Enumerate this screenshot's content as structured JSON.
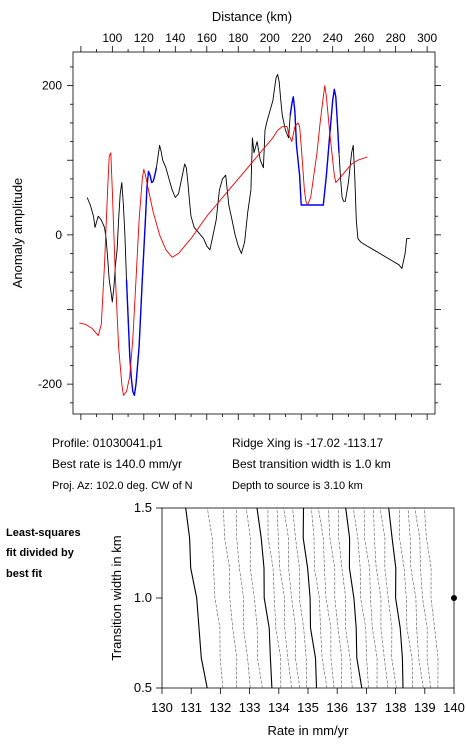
{
  "chart_data": [
    {
      "type": "line",
      "xlabel": "Distance (km)",
      "ylabel": "Anomaly amplitude",
      "xlim": [
        75,
        305
      ],
      "ylim": [
        -240,
        245
      ],
      "x_ticks": [
        100,
        120,
        140,
        160,
        180,
        200,
        220,
        240,
        260,
        280,
        300
      ],
      "y_ticks": [
        -200,
        0,
        200
      ],
      "grid": false,
      "series": [
        {
          "color": "#000000",
          "points": [
            [
              84,
              50
            ],
            [
              86,
              40
            ],
            [
              88,
              25
            ],
            [
              89,
              10
            ],
            [
              91,
              25
            ],
            [
              93,
              20
            ],
            [
              95,
              10
            ],
            [
              96,
              -5
            ],
            [
              97,
              -30
            ],
            [
              98,
              -60
            ],
            [
              99,
              -75
            ],
            [
              100,
              -90
            ],
            [
              101,
              -70
            ],
            [
              102,
              -40
            ],
            [
              103,
              -20
            ],
            [
              104,
              20
            ],
            [
              105,
              55
            ],
            [
              106,
              70
            ],
            [
              107,
              40
            ],
            [
              108,
              0
            ],
            [
              109,
              -60
            ],
            [
              110,
              -110
            ],
            [
              111,
              -160
            ],
            [
              112,
              -190
            ],
            [
              113,
              -210
            ],
            [
              114,
              -215
            ],
            [
              115,
              -200
            ],
            [
              117,
              -150
            ],
            [
              119,
              -60
            ],
            [
              121,
              20
            ],
            [
              122,
              65
            ],
            [
              123,
              85
            ],
            [
              124,
              80
            ],
            [
              125,
              70
            ],
            [
              126,
              72
            ],
            [
              127,
              80
            ],
            [
              128,
              90
            ],
            [
              129,
              105
            ],
            [
              130,
              120
            ],
            [
              131,
              112
            ],
            [
              132,
              100
            ],
            [
              134,
              90
            ],
            [
              136,
              75
            ],
            [
              138,
              60
            ],
            [
              140,
              50
            ],
            [
              142,
              55
            ],
            [
              144,
              75
            ],
            [
              146,
              95
            ],
            [
              147,
              90
            ],
            [
              148,
              70
            ],
            [
              149,
              45
            ],
            [
              150,
              25
            ],
            [
              152,
              10
            ],
            [
              154,
              5
            ],
            [
              156,
              0
            ],
            [
              158,
              -5
            ],
            [
              160,
              -15
            ],
            [
              162,
              -20
            ],
            [
              164,
              0
            ],
            [
              166,
              20
            ],
            [
              168,
              60
            ],
            [
              170,
              75
            ],
            [
              172,
              80
            ],
            [
              174,
              40
            ],
            [
              176,
              20
            ],
            [
              178,
              0
            ],
            [
              180,
              -15
            ],
            [
              182,
              -25
            ],
            [
              184,
              -10
            ],
            [
              186,
              30
            ],
            [
              188,
              60
            ],
            [
              189,
              130
            ],
            [
              190,
              110
            ],
            [
              192,
              125
            ],
            [
              194,
              100
            ],
            [
              196,
              90
            ],
            [
              197,
              140
            ],
            [
              198,
              150
            ],
            [
              200,
              165
            ],
            [
              202,
              180
            ],
            [
              204,
              210
            ],
            [
              205,
              215
            ],
            [
              206,
              205
            ],
            [
              207,
              180
            ],
            [
              208,
              160
            ],
            [
              210,
              140
            ],
            [
              212,
              130
            ],
            [
              213,
              160
            ],
            [
              214,
              175
            ],
            [
              215,
              185
            ],
            [
              216,
              165
            ],
            [
              217,
              120
            ],
            [
              219,
              80
            ],
            [
              220,
              40
            ],
            [
              222,
              40
            ],
            [
              226,
              40
            ],
            [
              230,
              40
            ],
            [
              233,
              40
            ],
            [
              234,
              40
            ],
            [
              236,
              80
            ],
            [
              238,
              130
            ],
            [
              240,
              180
            ],
            [
              241,
              195
            ],
            [
              242,
              185
            ],
            [
              243,
              150
            ],
            [
              244,
              110
            ],
            [
              245,
              75
            ],
            [
              246,
              50
            ],
            [
              247,
              45
            ],
            [
              248,
              45
            ],
            [
              250,
              70
            ],
            [
              252,
              110
            ],
            [
              253,
              120
            ],
            [
              254,
              80
            ],
            [
              255,
              20
            ],
            [
              256,
              -5
            ],
            [
              258,
              -10
            ],
            [
              262,
              -15
            ],
            [
              266,
              -20
            ],
            [
              270,
              -25
            ],
            [
              274,
              -30
            ],
            [
              278,
              -35
            ],
            [
              282,
              -40
            ],
            [
              284,
              -45
            ],
            [
              286,
              -25
            ],
            [
              287,
              -5
            ],
            [
              289,
              -5
            ]
          ]
        },
        {
          "color": "#0000ee",
          "points": [
            [
              109,
              -60
            ],
            [
              110,
              -110
            ],
            [
              111,
              -160
            ],
            [
              112,
              -190
            ],
            [
              113,
              -210
            ],
            [
              114,
              -215
            ],
            [
              115,
              -200
            ],
            [
              117,
              -150
            ],
            [
              119,
              -60
            ],
            [
              121,
              20
            ],
            [
              122,
              65
            ],
            [
              123,
              85
            ],
            [
              124,
              80
            ],
            [
              125,
              70
            ],
            [
              126,
              72
            ],
            [
              127,
              80
            ],
            [
              128,
              90
            ]
          ]
        },
        {
          "color": "#0000ee",
          "points": [
            [
              213,
              160
            ],
            [
              214,
              175
            ],
            [
              215,
              185
            ],
            [
              216,
              165
            ],
            [
              217,
              120
            ],
            [
              219,
              80
            ],
            [
              220,
              40
            ],
            [
              222,
              40
            ],
            [
              226,
              40
            ],
            [
              230,
              40
            ],
            [
              233,
              40
            ],
            [
              234,
              40
            ],
            [
              236,
              80
            ],
            [
              238,
              130
            ],
            [
              240,
              180
            ],
            [
              241,
              195
            ],
            [
              242,
              185
            ],
            [
              243,
              150
            ],
            [
              244,
              110
            ]
          ]
        },
        {
          "color": "#ee0000",
          "points": [
            [
              79,
              -118
            ],
            [
              83,
              -120
            ],
            [
              87,
              -125
            ],
            [
              91,
              -135
            ],
            [
              93,
              -120
            ],
            [
              95,
              -40
            ],
            [
              97,
              60
            ],
            [
              98,
              105
            ],
            [
              99,
              110
            ],
            [
              100,
              60
            ],
            [
              102,
              -60
            ],
            [
              104,
              -150
            ],
            [
              106,
              -200
            ],
            [
              107,
              -215
            ],
            [
              109,
              -210
            ],
            [
              111,
              -190
            ],
            [
              113,
              -140
            ],
            [
              115,
              -60
            ],
            [
              117,
              20
            ],
            [
              119,
              75
            ],
            [
              120,
              88
            ],
            [
              121,
              80
            ],
            [
              123,
              60
            ],
            [
              126,
              30
            ],
            [
              130,
              0
            ],
            [
              134,
              -20
            ],
            [
              138,
              -30
            ],
            [
              142,
              -25
            ],
            [
              146,
              -15
            ],
            [
              150,
              -5
            ],
            [
              155,
              10
            ],
            [
              160,
              25
            ],
            [
              166,
              40
            ],
            [
              172,
              55
            ],
            [
              178,
              70
            ],
            [
              184,
              85
            ],
            [
              190,
              100
            ],
            [
              196,
              115
            ],
            [
              202,
              130
            ],
            [
              205,
              140
            ],
            [
              208,
              145
            ],
            [
              211,
              145
            ],
            [
              212,
              135
            ],
            [
              214,
              125
            ],
            [
              216,
              145
            ],
            [
              218,
              150
            ],
            [
              219,
              145
            ],
            [
              220,
              120
            ],
            [
              221,
              90
            ],
            [
              222,
              60
            ],
            [
              223,
              45
            ],
            [
              224,
              40
            ],
            [
              226,
              50
            ],
            [
              228,
              80
            ],
            [
              230,
              110
            ],
            [
              232,
              150
            ],
            [
              234,
              185
            ],
            [
              235,
              200
            ],
            [
              236,
              185
            ],
            [
              238,
              140
            ],
            [
              240,
              100
            ],
            [
              241,
              80
            ],
            [
              242,
              70
            ],
            [
              244,
              75
            ],
            [
              248,
              85
            ],
            [
              252,
              95
            ],
            [
              256,
              100
            ],
            [
              260,
              103
            ],
            [
              262,
              104
            ]
          ]
        }
      ]
    },
    {
      "type": "contour",
      "xlabel": "Rate in mm/yr",
      "ylabel": "Transition width in km",
      "xlim": [
        130,
        140
      ],
      "ylim": [
        0.5,
        1.5
      ],
      "x_ticks": [
        130,
        131,
        132,
        133,
        134,
        135,
        136,
        137,
        138,
        139,
        140
      ],
      "y_ticks": [
        0.5,
        1.0,
        1.5
      ],
      "best_fit": {
        "rate": 140.0,
        "width": 1.0
      },
      "contour_rates_at_top": [
        130.8,
        131.6,
        132.1,
        132.5,
        132.9,
        133.3,
        133.6,
        133.9,
        134.2,
        134.5,
        134.8,
        135.1,
        135.4,
        135.7,
        136.0,
        136.3,
        136.6,
        136.9,
        137.2,
        137.5,
        137.8,
        138.1,
        138.4,
        138.7,
        139.0
      ],
      "contour_rates_at_bottom": [
        131.5,
        132.1,
        132.6,
        133.0,
        133.4,
        133.8,
        134.1,
        134.4,
        134.7,
        135.0,
        135.3,
        135.6,
        135.9,
        136.2,
        136.5,
        136.8,
        137.1,
        137.4,
        137.7,
        138.0,
        138.3,
        138.6,
        138.9,
        139.2,
        139.5
      ]
    }
  ],
  "info": {
    "profile": "Profile: 01030041.p1",
    "ridge_xing": "Ridge Xing is -17.02 -113.17",
    "best_rate": "Best rate is 140.0 mm/yr",
    "best_width": "Best transition width is 1.0 km",
    "proj_az": "Proj. Az: 102.0 deg. CW of N",
    "depth": "Depth to source is   3.10 km"
  },
  "caption": {
    "line1": "Least-squares",
    "line2": "fit divided by",
    "line3": "best fit"
  }
}
